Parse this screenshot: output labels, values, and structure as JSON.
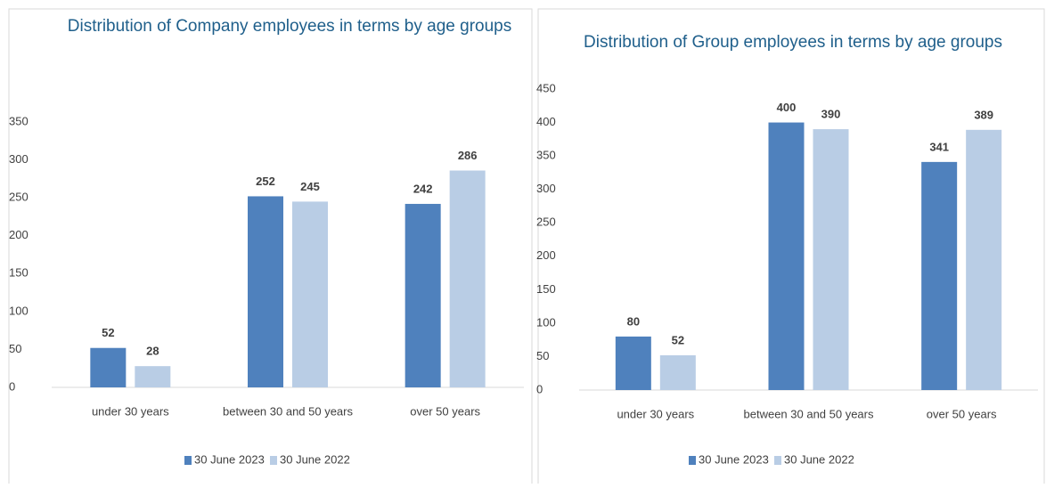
{
  "chart_data": [
    {
      "type": "bar",
      "title": "Distribution of Company employees in terms by age groups",
      "categories": [
        "under 30 years",
        "between 30 and 50 years",
        "over 50 years"
      ],
      "series": [
        {
          "name": "30 June 2023",
          "color": "#4f81bd",
          "values": [
            52,
            252,
            242
          ]
        },
        {
          "name": "30 June 2022",
          "color": "#b9cde5",
          "values": [
            28,
            245,
            286
          ]
        }
      ],
      "ylim": [
        0,
        350
      ],
      "yticks": [
        0,
        50,
        100,
        150,
        200,
        250,
        300,
        350
      ],
      "grid": false,
      "legend": "bottom"
    },
    {
      "type": "bar",
      "title": "Distribution of Group employees in terms by age groups",
      "categories": [
        "under 30 years",
        "between 30 and 50 years",
        "over 50 years"
      ],
      "series": [
        {
          "name": "30 June 2023",
          "color": "#4f81bd",
          "values": [
            80,
            400,
            341
          ]
        },
        {
          "name": "30 June 2022",
          "color": "#b9cde5",
          "values": [
            52,
            390,
            389
          ]
        }
      ],
      "ylim": [
        0,
        450
      ],
      "yticks": [
        0,
        50,
        100,
        150,
        200,
        250,
        300,
        350,
        400,
        450
      ],
      "grid": false,
      "legend": "bottom"
    }
  ]
}
